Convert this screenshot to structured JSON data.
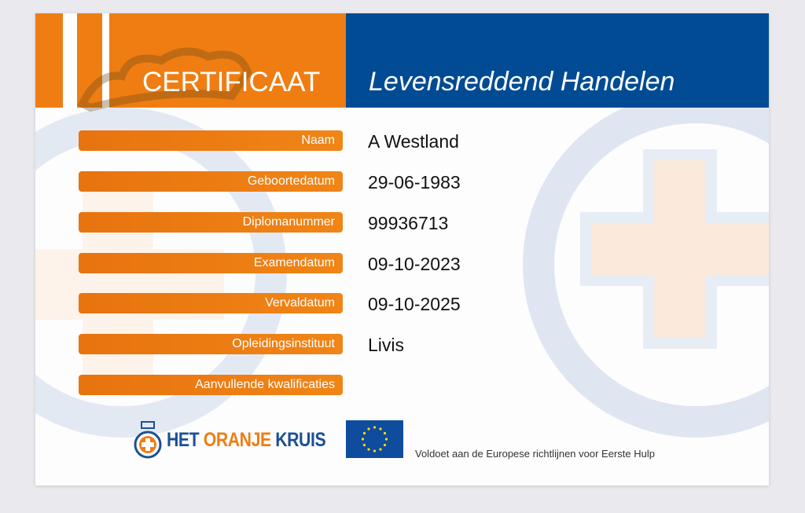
{
  "header": {
    "title": "CERTIFICAAT",
    "subtitle": "Levensreddend Handelen"
  },
  "fields": [
    {
      "label": "Naam",
      "value": "A Westland"
    },
    {
      "label": "Geboortedatum",
      "value": "29-06-1983"
    },
    {
      "label": "Diplomanummer",
      "value": "99936713"
    },
    {
      "label": "Examendatum",
      "value": "09-10-2023"
    },
    {
      "label": "Vervaldatum",
      "value": "09-10-2025"
    },
    {
      "label": "Opleidingsinstituut",
      "value": "Livis"
    },
    {
      "label": "Aanvullende kwalificaties",
      "value": ""
    }
  ],
  "footer": {
    "logo_part1": "HET",
    "logo_part2": "ORANJE",
    "logo_part3": "KRUIS",
    "note": "Voldoet aan de Europese richtlijnen voor Eerste Hulp"
  },
  "colors": {
    "orange": "#ef7d12",
    "blue": "#004b93"
  }
}
